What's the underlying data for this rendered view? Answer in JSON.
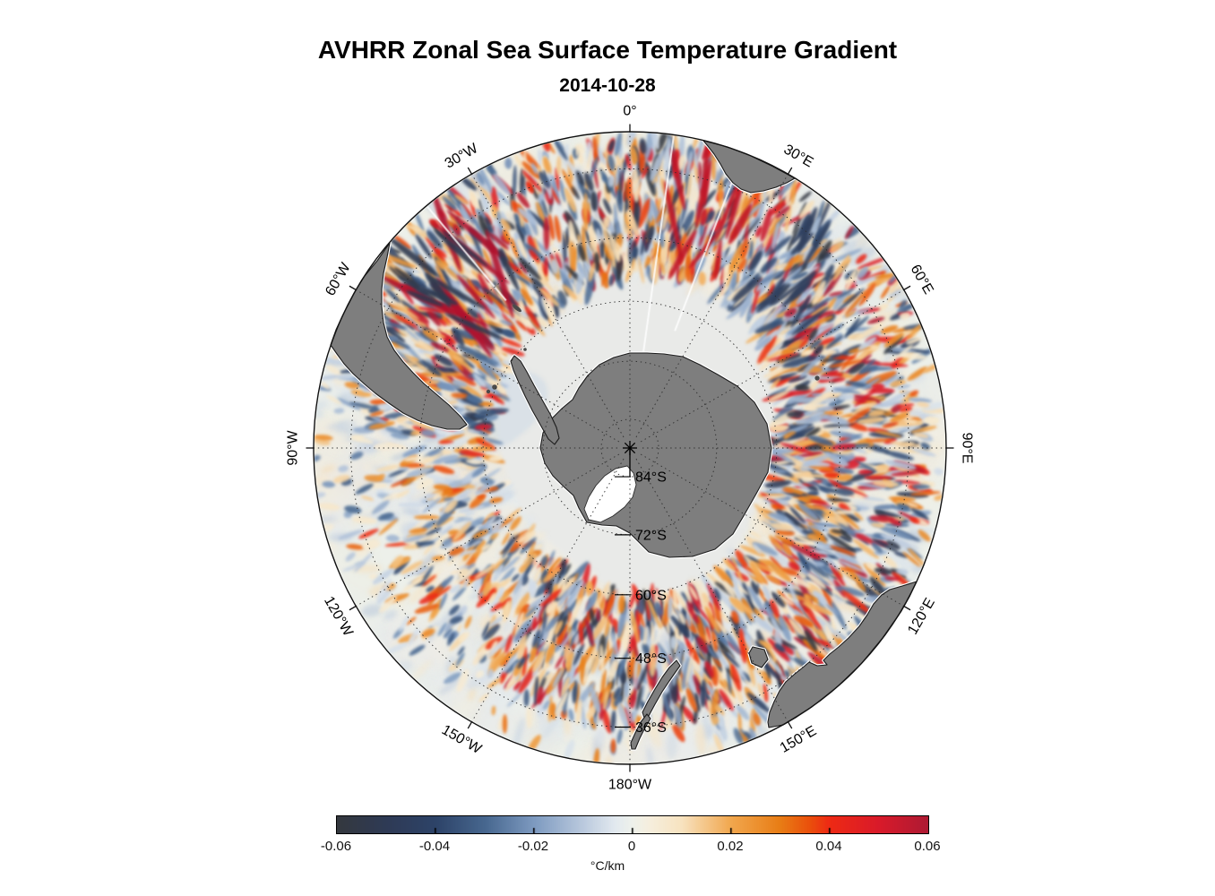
{
  "figure": {
    "title": "AVHRR Zonal Sea Surface Temperature Gradient",
    "subtitle": "2014-10-28"
  },
  "map": {
    "projection": "south-polar-stereographic",
    "outer_latitude_deg_S": 30,
    "longitude_labels": [
      {
        "text": "0°",
        "azimuth_deg": 0
      },
      {
        "text": "30°E",
        "azimuth_deg": 30
      },
      {
        "text": "60°E",
        "azimuth_deg": 60
      },
      {
        "text": "90°E",
        "azimuth_deg": 90
      },
      {
        "text": "120°E",
        "azimuth_deg": 120
      },
      {
        "text": "150°E",
        "azimuth_deg": 150
      },
      {
        "text": "180°W",
        "azimuth_deg": 180
      },
      {
        "text": "150°W",
        "azimuth_deg": 210
      },
      {
        "text": "120°W",
        "azimuth_deg": 240
      },
      {
        "text": "90°W",
        "azimuth_deg": 270
      },
      {
        "text": "60°W",
        "azimuth_deg": 300
      },
      {
        "text": "30°W",
        "azimuth_deg": 330
      }
    ],
    "latitude_labels": [
      {
        "text": "84°S",
        "lat_deg_S": 84
      },
      {
        "text": "72°S",
        "lat_deg_S": 72
      },
      {
        "text": "60°S",
        "lat_deg_S": 60
      },
      {
        "text": "48°S",
        "lat_deg_S": 48
      },
      {
        "text": "36°S",
        "lat_deg_S": 36
      }
    ],
    "pole_marker": "asterisk"
  },
  "colorbar": {
    "min": -0.06,
    "max": 0.06,
    "tick_labels": [
      "-0.06",
      "-0.04",
      "-0.02",
      "0",
      "0.02",
      "0.04",
      "0.06"
    ],
    "unit": "°C/km"
  },
  "colors": {
    "background": "#ffffff",
    "land": "#7e7e7e",
    "land_outline": "#1c1c1c",
    "sea_ice": "#e9eae8",
    "ocean_base": "#edf0ea",
    "colormap_stops": [
      [
        0.0,
        "#34383e"
      ],
      [
        0.083,
        "#2e3a55"
      ],
      [
        0.167,
        "#2d4368"
      ],
      [
        0.25,
        "#47678f"
      ],
      [
        0.333,
        "#7d9ac0"
      ],
      [
        0.417,
        "#bbcade"
      ],
      [
        0.47,
        "#e2e9ef"
      ],
      [
        0.5,
        "#eef1eb"
      ],
      [
        0.53,
        "#f6eedd"
      ],
      [
        0.583,
        "#f7e3c0"
      ],
      [
        0.667,
        "#f1a74e"
      ],
      [
        0.75,
        "#e87d15"
      ],
      [
        0.8,
        "#ea500c"
      ],
      [
        0.833,
        "#ee2a14"
      ],
      [
        0.917,
        "#d91a2a"
      ],
      [
        1.0,
        "#ae1a33"
      ]
    ]
  },
  "chart_data": {
    "type": "heatmap",
    "title": "AVHRR Zonal Sea Surface Temperature Gradient",
    "subtitle": "2014-10-28",
    "projection": "south-polar-stereographic",
    "field": "zonal sea surface temperature gradient from AVHRR satellite data",
    "units": "°C/km",
    "value_range": [
      -0.06,
      0.06
    ],
    "colorbar_ticks": [
      -0.06,
      -0.04,
      -0.02,
      0,
      0.02,
      0.04,
      0.06
    ],
    "colorbar_orientation": "horizontal-bottom",
    "graticule": {
      "latitude_rings_deg_S": [
        84,
        72,
        60,
        48,
        36
      ],
      "longitude_spoke_spacing_deg": 30,
      "style": "dotted"
    },
    "visible_landmasses": [
      "Antarctica",
      "Antarctic Peninsula",
      "Ross Ice Shelf",
      "South America (Patagonia)",
      "southern Africa",
      "Australia",
      "Tasmania",
      "New Zealand"
    ],
    "notable_features": [
      "strong eddy activity (|gradient| up to 0.06 °C/km) in Brazil–Malvinas confluence, Agulhas return current, Indian Ocean sector and south of New Zealand",
      "pale gray sea-ice / no-data zone surrounding Antarctica to roughly 60°S",
      "quiet pale field in the South Pacific sector"
    ]
  }
}
